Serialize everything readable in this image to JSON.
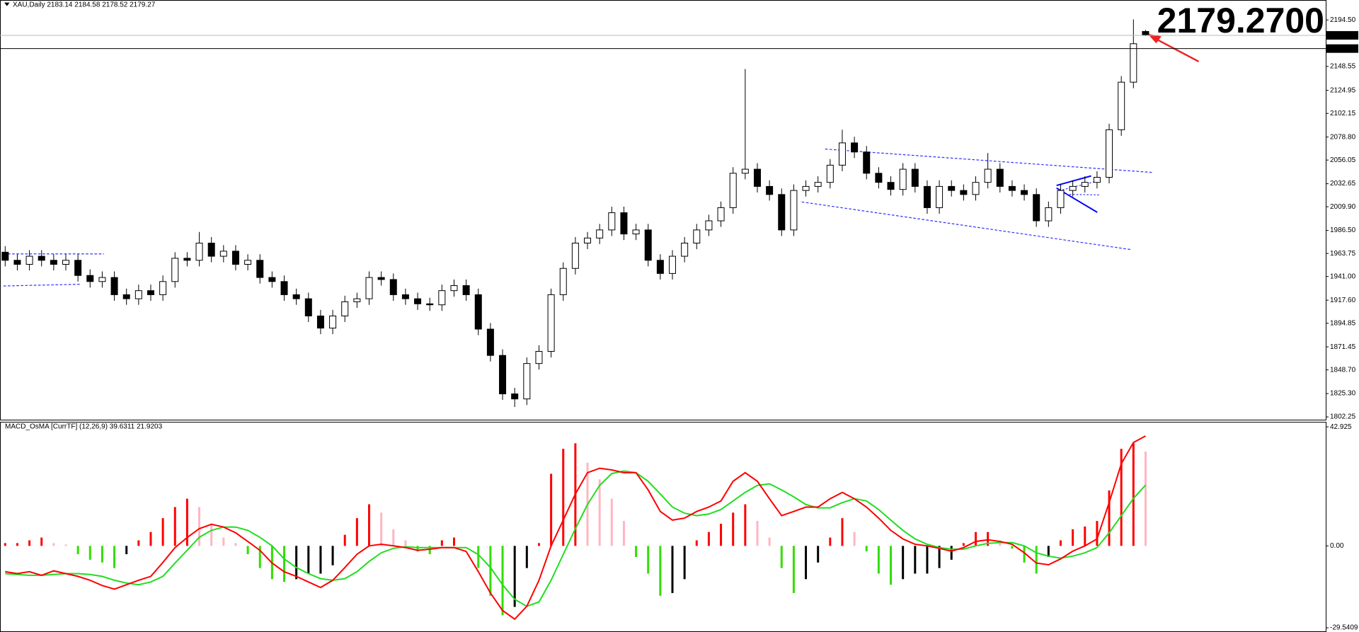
{
  "chart_data": [
    {
      "type": "candlestick",
      "info": "XAU,Daily  2183.14 2184.58 2178.52 2179.27",
      "price_label": "2179.2700",
      "open": [
        1965,
        1957,
        1953,
        1961,
        1957,
        1953,
        1957,
        1942,
        1936,
        1940,
        1923,
        1919,
        1927,
        1923,
        1936,
        1959,
        1957,
        1974,
        1961,
        1966,
        1953,
        1957,
        1940,
        1936,
        1923,
        1919,
        1902,
        1890,
        1902,
        1916,
        1919,
        1940,
        1938,
        1923,
        1919,
        1914,
        1913,
        1927,
        1932,
        1923,
        1889,
        1863,
        1825,
        1820,
        1855,
        1867,
        1923,
        1949,
        1974,
        1979,
        1987,
        2004,
        1983,
        1987,
        1957,
        1944,
        1961,
        1974,
        1987,
        1996,
        2009,
        2043,
        2047,
        2030,
        2022,
        1987,
        2026,
        2030,
        2034,
        2051,
        2073,
        2064,
        2043,
        2034,
        2027,
        2047,
        2030,
        2009,
        2030,
        2026,
        2022,
        2034,
        2047,
        2030,
        2026,
        2022,
        1996,
        2009,
        2026,
        2030,
        2034,
        2039,
        2086,
        2133,
        2183.14
      ],
      "high": [
        1971,
        1963,
        1967,
        1967,
        1963,
        1963,
        1963,
        1948,
        1946,
        1946,
        1929,
        1933,
        1933,
        1942,
        1965,
        1965,
        1985,
        1980,
        1972,
        1972,
        1963,
        1963,
        1946,
        1942,
        1929,
        1925,
        1908,
        1908,
        1922,
        1925,
        1946,
        1946,
        1944,
        1929,
        1925,
        1920,
        1933,
        1938,
        1938,
        1929,
        1895,
        1869,
        1831,
        1861,
        1873,
        1929,
        1955,
        1980,
        1985,
        1993,
        2010,
        2010,
        1993,
        1993,
        1963,
        1967,
        1980,
        1993,
        2002,
        2015,
        2049,
        2146,
        2053,
        2036,
        2028,
        2032,
        2036,
        2040,
        2057,
        2086,
        2079,
        2070,
        2049,
        2040,
        2053,
        2053,
        2036,
        2036,
        2036,
        2032,
        2040,
        2063,
        2053,
        2036,
        2032,
        2028,
        2015,
        2032,
        2036,
        2040,
        2045,
        2092,
        2139,
        2195,
        2184.58
      ],
      "low": [
        1951,
        1947,
        1947,
        1951,
        1947,
        1947,
        1936,
        1930,
        1930,
        1917,
        1913,
        1913,
        1917,
        1917,
        1930,
        1951,
        1951,
        1955,
        1955,
        1947,
        1947,
        1934,
        1930,
        1917,
        1913,
        1896,
        1884,
        1884,
        1896,
        1910,
        1913,
        1932,
        1917,
        1913,
        1908,
        1907,
        1907,
        1921,
        1917,
        1883,
        1857,
        1819,
        1812,
        1814,
        1849,
        1861,
        1917,
        1943,
        1968,
        1973,
        1981,
        1977,
        1977,
        1951,
        1938,
        1938,
        1955,
        1968,
        1981,
        1990,
        2003,
        2037,
        2024,
        2016,
        1981,
        1981,
        2020,
        2024,
        2028,
        2045,
        2058,
        2037,
        2028,
        2021,
        2021,
        2024,
        2003,
        2003,
        2020,
        2016,
        2016,
        2028,
        2024,
        2020,
        2016,
        1990,
        1990,
        2003,
        2020,
        2024,
        2028,
        2033,
        2080,
        2127,
        2178.52
      ],
      "close": [
        1957,
        1953,
        1961,
        1957,
        1953,
        1957,
        1942,
        1936,
        1940,
        1923,
        1919,
        1927,
        1923,
        1936,
        1959,
        1957,
        1974,
        1961,
        1966,
        1953,
        1957,
        1940,
        1936,
        1923,
        1919,
        1902,
        1890,
        1902,
        1916,
        1919,
        1940,
        1938,
        1923,
        1919,
        1914,
        1913,
        1927,
        1932,
        1923,
        1889,
        1863,
        1825,
        1820,
        1855,
        1867,
        1923,
        1949,
        1974,
        1979,
        1987,
        2004,
        1983,
        1987,
        1957,
        1944,
        1961,
        1974,
        1987,
        1996,
        2009,
        2043,
        2047,
        2030,
        2022,
        1987,
        2026,
        2030,
        2034,
        2051,
        2073,
        2064,
        2043,
        2034,
        2027,
        2047,
        2030,
        2009,
        2030,
        2026,
        2022,
        2034,
        2047,
        2030,
        2026,
        2022,
        1996,
        2009,
        2026,
        2030,
        2034,
        2039,
        2086,
        2133,
        2171,
        2179.27
      ],
      "ylim": [
        1798.8,
        2214.2
      ],
      "yticks": [
        {
          "value": 2194.5,
          "label": "2194.50"
        },
        2148.55,
        2124.95,
        2102.15,
        {
          "value": 2078.8,
          "label": "2078.80"
        },
        2056.05,
        2032.65,
        {
          "value": 2009.9,
          "label": "2009.90"
        },
        {
          "value": 1986.5,
          "label": "1986.50"
        },
        1963.75,
        {
          "value": 1941,
          "label": "1941.00"
        },
        {
          "value": 1917.6,
          "label": "1917.60"
        },
        1894.85,
        1871.45,
        {
          "value": 1848.7,
          "label": "1848.70"
        },
        {
          "value": 1825.3,
          "label": "1825.30"
        },
        1802.25
      ],
      "grid": false,
      "colors": {
        "up": "#ffffff",
        "down": "#000000",
        "outline": "#000000",
        "price_label": "#66ee11"
      },
      "price_lines": [
        2179.27,
        2166.19
      ],
      "price_line_colors": [
        "#b8b8b8",
        "#000000"
      ]
    },
    {
      "type": "macd",
      "title": "MACD_OsMA [CurrTF] (12,26,9) 39.6311 21.9203",
      "histogram": [
        1,
        1,
        2,
        3,
        1,
        0.5,
        -3,
        -5,
        -6,
        -8,
        -3,
        2,
        5,
        10,
        14,
        17,
        14,
        8,
        3,
        1,
        -3,
        -8,
        -12,
        -13,
        -12,
        -10,
        -10,
        -7,
        4,
        10,
        15,
        12,
        6,
        2,
        -2,
        -3,
        2,
        3,
        0,
        -8,
        -18,
        -25,
        -22,
        -8,
        1,
        26,
        35,
        37,
        30,
        24,
        17,
        9,
        -4,
        -10,
        -18,
        -17,
        -12,
        2,
        5,
        8,
        12,
        15,
        9,
        3,
        -8,
        -17,
        -12,
        -6,
        3,
        10,
        5,
        -2,
        -10,
        -14,
        -12,
        -10,
        -10,
        -8,
        -5,
        1,
        5,
        5,
        2,
        -1,
        -6,
        -10,
        -4,
        2,
        6,
        7,
        9,
        20,
        35,
        37,
        34
      ],
      "macd": [
        -9.3,
        -10,
        -9.3,
        -10.6,
        -9,
        -10,
        -11,
        -12.4,
        -14.3,
        -15.6,
        -14,
        -12.4,
        -11,
        -6,
        -0.6,
        3,
        6.2,
        7.8,
        6.8,
        4.7,
        1.6,
        -1.6,
        -6.2,
        -9.3,
        -11,
        -13,
        -15,
        -12.4,
        -7.8,
        -3,
        0,
        0.6,
        0,
        -0.6,
        -1.6,
        -1.2,
        -0.6,
        -0.6,
        -2,
        -9.3,
        -17,
        -23.3,
        -26.4,
        -21.8,
        -12.4,
        0,
        9.3,
        18.7,
        26.4,
        28,
        27.4,
        26.4,
        26.4,
        20.2,
        12.4,
        9.3,
        10,
        12.4,
        14,
        16.2,
        23.3,
        26.4,
        23.3,
        17,
        10.9,
        12.4,
        14,
        14,
        17,
        19.3,
        17,
        14,
        10,
        5.6,
        2.5,
        0.6,
        0,
        -0.9,
        -1.9,
        -0.6,
        1.6,
        2.2,
        1.6,
        0.6,
        -2.5,
        -6.2,
        -6.8,
        -4.7,
        -1.9,
        0,
        2.5,
        15.6,
        29.6,
        37.3,
        39.6311
      ],
      "signal": [
        -10,
        -10.3,
        -10.6,
        -10.6,
        -10.3,
        -10,
        -10,
        -10.3,
        -11,
        -12.4,
        -13.4,
        -14,
        -13,
        -11,
        -6.2,
        -1.6,
        3.1,
        5.6,
        6.8,
        6.8,
        5.6,
        3.1,
        0,
        -4.7,
        -7.8,
        -10,
        -11.8,
        -12.4,
        -11.8,
        -9.3,
        -5.6,
        -2.5,
        -0.9,
        -0.3,
        -0.6,
        -0.6,
        -0.6,
        -0.6,
        -0.6,
        -3.1,
        -7.8,
        -14,
        -19.3,
        -21.8,
        -20.2,
        -12.4,
        -3.1,
        6.2,
        14.9,
        21.8,
        26.1,
        27,
        26.4,
        23.3,
        18.7,
        14,
        11.8,
        10.9,
        11.5,
        13.1,
        16.2,
        19.3,
        21.8,
        22.4,
        20.2,
        17.7,
        14.9,
        13.7,
        13.7,
        15.6,
        17,
        16.2,
        13.1,
        9.3,
        5.6,
        2.5,
        0.6,
        -0.6,
        -1.2,
        -1.2,
        0,
        0.9,
        1.2,
        1.2,
        0,
        -2.5,
        -3.7,
        -4.4,
        -3.7,
        -2.5,
        -0.6,
        4.7,
        10.9,
        17.1,
        21.9203
      ],
      "ylim": [
        -30.8,
        44.49
      ],
      "yticks": [
        42.925,
        {
          "value": 0,
          "label": "0.00"
        },
        -29.5409
      ],
      "colors": {
        "pos_up": "#ff0000",
        "pos_down": "#ffb6c1",
        "neg_down": "#33dd00",
        "neg_up": "#000000",
        "macd": "#ff0000",
        "signal": "#22dd22"
      }
    }
  ]
}
